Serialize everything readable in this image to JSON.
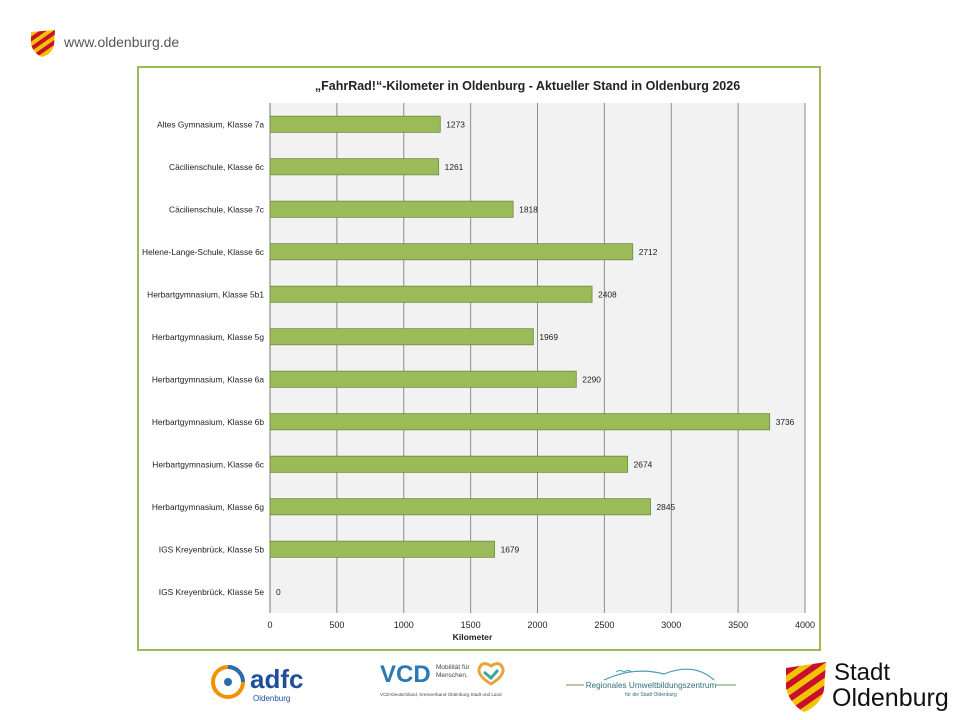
{
  "header": {
    "url": "www.oldenburg.de"
  },
  "colors": {
    "bar": "#9bbb59",
    "bar_stroke": "#71893f",
    "frame": "#9bbb59",
    "grid": "#8c8c8c",
    "plot_bg": "#f2f2f2",
    "city_red": "#c8102e",
    "city_yellow": "#f4c300"
  },
  "chart_data": {
    "type": "bar",
    "orientation": "horizontal",
    "title": "„FahrRad!“-Kilometer in Oldenburg - Aktueller Stand in Oldenburg 2026",
    "xlabel": "Kilometer",
    "ylabel": "",
    "xlim": [
      0,
      4000
    ],
    "xticks": [
      0,
      500,
      1000,
      1500,
      2000,
      2500,
      3000,
      3500,
      4000
    ],
    "grid": true,
    "categories": [
      "Altes Gymnasium, Klasse 7a",
      "Cäcilienschule, Klasse 6c",
      "Cäcilienschule, Klasse 7c",
      "Helene-Lange-Schule, Klasse 6c",
      "Herbartgymnasium, Klasse 5b1",
      "Herbartgymnasium, Klasse 5g",
      "Herbartgymnasium, Klasse 6a",
      "Herbartgymnasium, Klasse 6b",
      "Herbartgymnasium, Klasse 6c",
      "Herbartgymnasium, Klasse 6g",
      "IGS Kreyenbrück, Klasse 5b",
      "IGS Kreyenbrück, Klasse 5e"
    ],
    "values": [
      1273,
      1261,
      1818,
      2712,
      2408,
      1969,
      2290,
      3736,
      2674,
      2845,
      1679,
      0
    ]
  },
  "footer": {
    "adfc": {
      "name": "adfc",
      "sub": "Oldenburg"
    },
    "vcd": {
      "name": "VCD",
      "tagline_1": "Mobilität für",
      "tagline_2": "Menschen.",
      "sub": "VCD-Deutschland, Kreisverband Oldenburg Stadt und Land"
    },
    "ruz": {
      "name": "Regionales Umweltbildungszentrum",
      "sub": "für die Stadt Oldenburg"
    },
    "city": {
      "line1": "Stadt",
      "line2": "Oldenburg"
    }
  }
}
